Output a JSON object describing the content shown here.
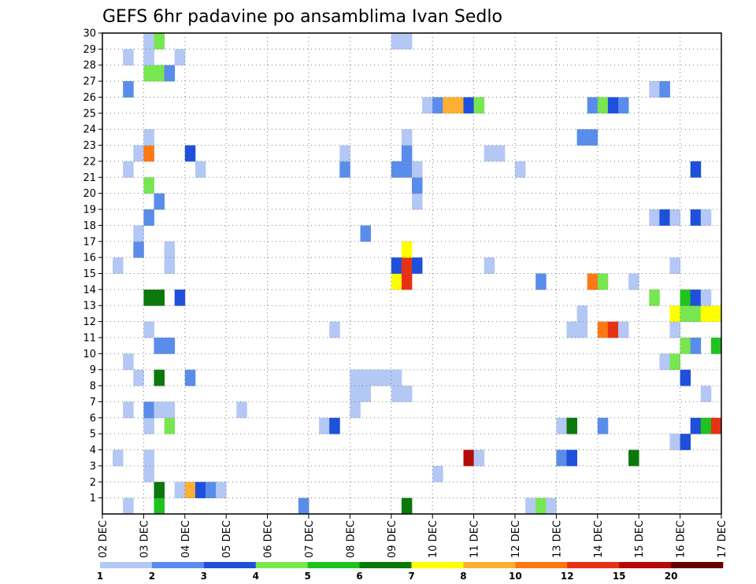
{
  "chart_data": {
    "type": "heatmap",
    "title": "GEFS 6hr padavine po ansamblima Ivan Sedlo",
    "xlabel": "",
    "ylabel": "",
    "x_ticks": [
      "02 DEC",
      "03 DEC",
      "04 DEC",
      "05 DEC",
      "06 DEC",
      "07 DEC",
      "08 DEC",
      "09 DEC",
      "10 DEC",
      "11 DEC",
      "12 DEC",
      "13 DEC",
      "14 DEC",
      "15 DEC",
      "16 DEC",
      "17 DEC"
    ],
    "x_range": [
      0,
      60
    ],
    "y_ticks": [
      1,
      2,
      3,
      4,
      5,
      6,
      7,
      8,
      9,
      10,
      11,
      12,
      13,
      14,
      15,
      16,
      17,
      18,
      19,
      20,
      21,
      22,
      23,
      24,
      25,
      26,
      27,
      28,
      29,
      30
    ],
    "y_range": [
      0,
      30
    ],
    "grid": true,
    "legend": {
      "position": "bottom",
      "levels": [
        "1",
        "2",
        "3",
        "4",
        "5",
        "6",
        "7",
        "8",
        "10",
        "12",
        "15",
        "20"
      ],
      "colors": [
        "#b4c8f5",
        "#5a8ceb",
        "#1e50dc",
        "#78e650",
        "#1ec31e",
        "#0a780a",
        "#ffff00",
        "#ffaf32",
        "#ff7814",
        "#e63214",
        "#b40a0a",
        "#640000"
      ]
    },
    "cells": [
      {
        "t": 5,
        "m": 0,
        "c": "#1ec31e"
      },
      {
        "t": 19,
        "m": 0,
        "c": "#5a8ceb"
      },
      {
        "t": 29,
        "m": 0,
        "c": "#0a780a"
      },
      {
        "t": 41,
        "m": 0,
        "c": "#b4c8f5"
      },
      {
        "t": 42,
        "m": 0,
        "c": "#78e650"
      },
      {
        "t": 43,
        "m": 0,
        "c": "#b4c8f5"
      },
      {
        "t": 2,
        "m": 0,
        "c": "#b4c8f5"
      },
      {
        "t": 5,
        "m": 1,
        "c": "#0a780a"
      },
      {
        "t": 7,
        "m": 1,
        "c": "#b4c8f5"
      },
      {
        "t": 8,
        "m": 1,
        "c": "#ffaf32"
      },
      {
        "t": 9,
        "m": 1,
        "c": "#1e50dc"
      },
      {
        "t": 10,
        "m": 1,
        "c": "#5a8ceb"
      },
      {
        "t": 11,
        "m": 1,
        "c": "#b4c8f5"
      },
      {
        "t": 4,
        "m": 2,
        "c": "#b4c8f5"
      },
      {
        "t": 32,
        "m": 2,
        "c": "#b4c8f5"
      },
      {
        "t": 1,
        "m": 3,
        "c": "#b4c8f5"
      },
      {
        "t": 4,
        "m": 3,
        "c": "#b4c8f5"
      },
      {
        "t": 35,
        "m": 3,
        "c": "#b40a0a"
      },
      {
        "t": 36,
        "m": 3,
        "c": "#b4c8f5"
      },
      {
        "t": 44,
        "m": 3,
        "c": "#5a8ceb"
      },
      {
        "t": 45,
        "m": 3,
        "c": "#1e50dc"
      },
      {
        "t": 51,
        "m": 3,
        "c": "#0a780a"
      },
      {
        "t": 55,
        "m": 4,
        "c": "#b4c8f5"
      },
      {
        "t": 56,
        "m": 4,
        "c": "#1e50dc"
      },
      {
        "t": 4,
        "m": 5,
        "c": "#b4c8f5"
      },
      {
        "t": 6,
        "m": 5,
        "c": "#78e650"
      },
      {
        "t": 21,
        "m": 5,
        "c": "#b4c8f5"
      },
      {
        "t": 22,
        "m": 5,
        "c": "#1e50dc"
      },
      {
        "t": 44,
        "m": 5,
        "c": "#b4c8f5"
      },
      {
        "t": 45,
        "m": 5,
        "c": "#0a780a"
      },
      {
        "t": 48,
        "m": 5,
        "c": "#5a8ceb"
      },
      {
        "t": 57,
        "m": 5,
        "c": "#1e50dc"
      },
      {
        "t": 58,
        "m": 5,
        "c": "#1ec31e"
      },
      {
        "t": 59,
        "m": 5,
        "c": "#e63214"
      },
      {
        "t": 4,
        "m": 6,
        "c": "#5a8ceb"
      },
      {
        "t": 5,
        "m": 6,
        "c": "#b4c8f5"
      },
      {
        "t": 6,
        "m": 6,
        "c": "#b4c8f5"
      },
      {
        "t": 13,
        "m": 6,
        "c": "#b4c8f5"
      },
      {
        "t": 24,
        "m": 6,
        "c": "#b4c8f5"
      },
      {
        "t": 2,
        "m": 6,
        "c": "#b4c8f5"
      },
      {
        "t": 24,
        "m": 7,
        "c": "#b4c8f5"
      },
      {
        "t": 25,
        "m": 7,
        "c": "#b4c8f5"
      },
      {
        "t": 28,
        "m": 7,
        "c": "#b4c8f5"
      },
      {
        "t": 29,
        "m": 7,
        "c": "#b4c8f5"
      },
      {
        "t": 58,
        "m": 7,
        "c": "#b4c8f5"
      },
      {
        "t": 3,
        "m": 8,
        "c": "#b4c8f5"
      },
      {
        "t": 5,
        "m": 8,
        "c": "#0a780a"
      },
      {
        "t": 8,
        "m": 8,
        "c": "#5a8ceb"
      },
      {
        "t": 24,
        "m": 8,
        "c": "#b4c8f5"
      },
      {
        "t": 25,
        "m": 8,
        "c": "#b4c8f5"
      },
      {
        "t": 26,
        "m": 8,
        "c": "#b4c8f5"
      },
      {
        "t": 27,
        "m": 8,
        "c": "#b4c8f5"
      },
      {
        "t": 28,
        "m": 8,
        "c": "#b4c8f5"
      },
      {
        "t": 56,
        "m": 8,
        "c": "#1e50dc"
      },
      {
        "t": 2,
        "m": 9,
        "c": "#b4c8f5"
      },
      {
        "t": 54,
        "m": 9,
        "c": "#b4c8f5"
      },
      {
        "t": 55,
        "m": 9,
        "c": "#78e650"
      },
      {
        "t": 5,
        "m": 10,
        "c": "#5a8ceb"
      },
      {
        "t": 6,
        "m": 10,
        "c": "#5a8ceb"
      },
      {
        "t": 56,
        "m": 10,
        "c": "#78e650"
      },
      {
        "t": 57,
        "m": 10,
        "c": "#5a8ceb"
      },
      {
        "t": 59,
        "m": 10,
        "c": "#1ec31e"
      },
      {
        "t": 4,
        "m": 11,
        "c": "#b4c8f5"
      },
      {
        "t": 22,
        "m": 11,
        "c": "#b4c8f5"
      },
      {
        "t": 45,
        "m": 11,
        "c": "#b4c8f5"
      },
      {
        "t": 46,
        "m": 11,
        "c": "#b4c8f5"
      },
      {
        "t": 48,
        "m": 11,
        "c": "#ff7814"
      },
      {
        "t": 49,
        "m": 11,
        "c": "#e63214"
      },
      {
        "t": 50,
        "m": 11,
        "c": "#b4c8f5"
      },
      {
        "t": 55,
        "m": 11,
        "c": "#b4c8f5"
      },
      {
        "t": 46,
        "m": 12,
        "c": "#b4c8f5"
      },
      {
        "t": 55,
        "m": 12,
        "c": "#ffff00"
      },
      {
        "t": 56,
        "m": 12,
        "c": "#78e650"
      },
      {
        "t": 57,
        "m": 12,
        "c": "#78e650"
      },
      {
        "t": 58,
        "m": 12,
        "c": "#ffff00"
      },
      {
        "t": 59,
        "m": 12,
        "c": "#ffff00"
      },
      {
        "t": 4,
        "m": 13,
        "c": "#0a780a"
      },
      {
        "t": 5,
        "m": 13,
        "c": "#0a780a"
      },
      {
        "t": 7,
        "m": 13,
        "c": "#1e50dc"
      },
      {
        "t": 53,
        "m": 13,
        "c": "#78e650"
      },
      {
        "t": 56,
        "m": 13,
        "c": "#1ec31e"
      },
      {
        "t": 57,
        "m": 13,
        "c": "#1e50dc"
      },
      {
        "t": 58,
        "m": 13,
        "c": "#b4c8f5"
      },
      {
        "t": 28,
        "m": 14,
        "c": "#ffff00"
      },
      {
        "t": 29,
        "m": 14,
        "c": "#e63214"
      },
      {
        "t": 42,
        "m": 14,
        "c": "#5a8ceb"
      },
      {
        "t": 47,
        "m": 14,
        "c": "#ff7814"
      },
      {
        "t": 48,
        "m": 14,
        "c": "#78e650"
      },
      {
        "t": 51,
        "m": 14,
        "c": "#b4c8f5"
      },
      {
        "t": 1,
        "m": 15,
        "c": "#b4c8f5"
      },
      {
        "t": 6,
        "m": 15,
        "c": "#b4c8f5"
      },
      {
        "t": 28,
        "m": 15,
        "c": "#1e50dc"
      },
      {
        "t": 29,
        "m": 15,
        "c": "#e63214"
      },
      {
        "t": 30,
        "m": 15,
        "c": "#1e50dc"
      },
      {
        "t": 37,
        "m": 15,
        "c": "#b4c8f5"
      },
      {
        "t": 55,
        "m": 15,
        "c": "#b4c8f5"
      },
      {
        "t": 6,
        "m": 16,
        "c": "#b4c8f5"
      },
      {
        "t": 29,
        "m": 16,
        "c": "#ffff00"
      },
      {
        "t": 3,
        "m": 16,
        "c": "#5a8ceb"
      },
      {
        "t": 3,
        "m": 17,
        "c": "#b4c8f5"
      },
      {
        "t": 25,
        "m": 17,
        "c": "#5a8ceb"
      },
      {
        "t": 4,
        "m": 18,
        "c": "#5a8ceb"
      },
      {
        "t": 53,
        "m": 18,
        "c": "#b4c8f5"
      },
      {
        "t": 54,
        "m": 18,
        "c": "#1e50dc"
      },
      {
        "t": 55,
        "m": 18,
        "c": "#b4c8f5"
      },
      {
        "t": 57,
        "m": 18,
        "c": "#1e50dc"
      },
      {
        "t": 58,
        "m": 18,
        "c": "#b4c8f5"
      },
      {
        "t": 5,
        "m": 19,
        "c": "#5a8ceb"
      },
      {
        "t": 30,
        "m": 19,
        "c": "#b4c8f5"
      },
      {
        "t": 4,
        "m": 20,
        "c": "#78e650"
      },
      {
        "t": 30,
        "m": 20,
        "c": "#5a8ceb"
      },
      {
        "t": 2,
        "m": 21,
        "c": "#b4c8f5"
      },
      {
        "t": 9,
        "m": 21,
        "c": "#b4c8f5"
      },
      {
        "t": 23,
        "m": 21,
        "c": "#5a8ceb"
      },
      {
        "t": 28,
        "m": 21,
        "c": "#5a8ceb"
      },
      {
        "t": 29,
        "m": 21,
        "c": "#5a8ceb"
      },
      {
        "t": 30,
        "m": 21,
        "c": "#b4c8f5"
      },
      {
        "t": 40,
        "m": 21,
        "c": "#b4c8f5"
      },
      {
        "t": 57,
        "m": 21,
        "c": "#1e50dc"
      },
      {
        "t": 3,
        "m": 22,
        "c": "#b4c8f5"
      },
      {
        "t": 4,
        "m": 22,
        "c": "#ff7814"
      },
      {
        "t": 8,
        "m": 22,
        "c": "#1e50dc"
      },
      {
        "t": 23,
        "m": 22,
        "c": "#b4c8f5"
      },
      {
        "t": 29,
        "m": 22,
        "c": "#5a8ceb"
      },
      {
        "t": 37,
        "m": 22,
        "c": "#b4c8f5"
      },
      {
        "t": 38,
        "m": 22,
        "c": "#b4c8f5"
      },
      {
        "t": 4,
        "m": 23,
        "c": "#b4c8f5"
      },
      {
        "t": 29,
        "m": 23,
        "c": "#b4c8f5"
      },
      {
        "t": 46,
        "m": 23,
        "c": "#5a8ceb"
      },
      {
        "t": 47,
        "m": 23,
        "c": "#5a8ceb"
      },
      {
        "t": 31,
        "m": 25,
        "c": "#b4c8f5"
      },
      {
        "t": 32,
        "m": 25,
        "c": "#5a8ceb"
      },
      {
        "t": 33,
        "m": 25,
        "c": "#ffaf32"
      },
      {
        "t": 34,
        "m": 25,
        "c": "#ffaf32"
      },
      {
        "t": 35,
        "m": 25,
        "c": "#1e50dc"
      },
      {
        "t": 36,
        "m": 25,
        "c": "#78e650"
      },
      {
        "t": 47,
        "m": 25,
        "c": "#5a8ceb"
      },
      {
        "t": 48,
        "m": 25,
        "c": "#78e650"
      },
      {
        "t": 49,
        "m": 25,
        "c": "#1e50dc"
      },
      {
        "t": 50,
        "m": 25,
        "c": "#5a8ceb"
      },
      {
        "t": 2,
        "m": 26,
        "c": "#5a8ceb"
      },
      {
        "t": 53,
        "m": 26,
        "c": "#b4c8f5"
      },
      {
        "t": 54,
        "m": 26,
        "c": "#5a8ceb"
      },
      {
        "t": 4,
        "m": 27,
        "c": "#78e650"
      },
      {
        "t": 5,
        "m": 27,
        "c": "#78e650"
      },
      {
        "t": 6,
        "m": 27,
        "c": "#5a8ceb"
      },
      {
        "t": 2,
        "m": 28,
        "c": "#b4c8f5"
      },
      {
        "t": 4,
        "m": 28,
        "c": "#b4c8f5"
      },
      {
        "t": 7,
        "m": 28,
        "c": "#b4c8f5"
      },
      {
        "t": 4,
        "m": 29,
        "c": "#b4c8f5"
      },
      {
        "t": 5,
        "m": 29,
        "c": "#78e650"
      },
      {
        "t": 28,
        "m": 29,
        "c": "#b4c8f5"
      },
      {
        "t": 29,
        "m": 29,
        "c": "#b4c8f5"
      }
    ]
  }
}
